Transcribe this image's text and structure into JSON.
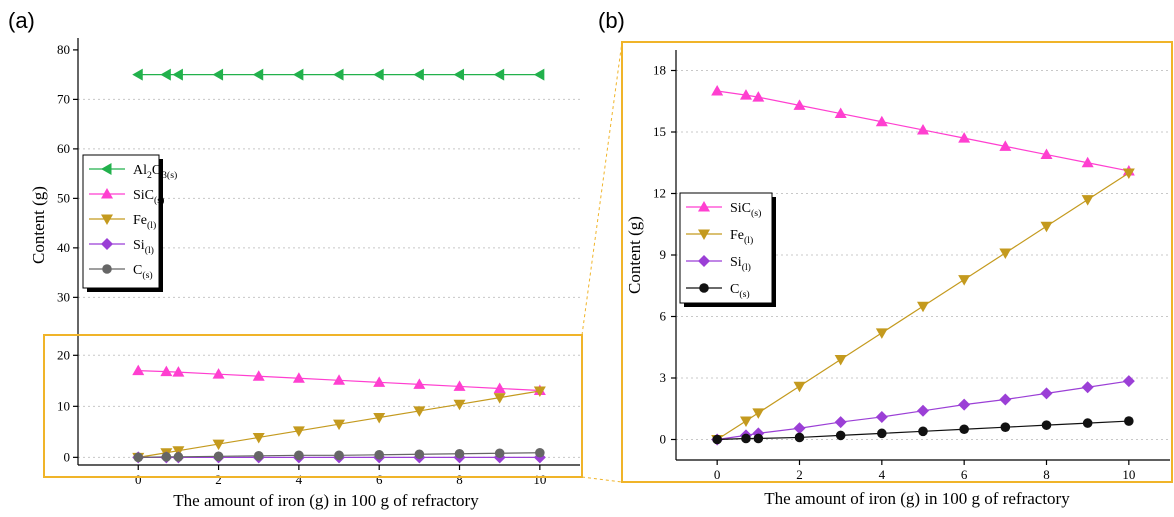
{
  "figure": {
    "panel_a_label": "(a)",
    "panel_b_label": "(b)",
    "highlight_color": "#f0b429"
  },
  "chart_data": [
    {
      "type": "line",
      "panel": "(a)",
      "xlabel": "The amount of iron (g) in 100 g of refractory",
      "ylabel": "Content (g)",
      "xlim": [
        -1.5,
        11
      ],
      "xticks": [
        0,
        2,
        4,
        6,
        8,
        10
      ],
      "y_upper": {
        "ylim": [
          23,
          82
        ],
        "yticks": [
          30,
          40,
          50,
          60,
          70,
          80
        ]
      },
      "y_lower": {
        "ylim": [
          -1.5,
          23
        ],
        "yticks": [
          0,
          10,
          20
        ]
      },
      "grid": true,
      "legend_position": "left",
      "x": [
        0,
        0.7,
        1,
        2,
        3,
        4,
        5,
        6,
        7,
        8,
        9,
        10
      ],
      "series": [
        {
          "key": "al2o3",
          "name": "Al2O3(s)",
          "marker": "left-triangle",
          "color": "#22b14c",
          "values": [
            75,
            75,
            75,
            75,
            75,
            75,
            75,
            75,
            75,
            75,
            75,
            75
          ]
        },
        {
          "key": "sic",
          "name": "SiC(s)",
          "marker": "up-triangle",
          "color": "#ff3fd0",
          "values": [
            17,
            16.8,
            16.7,
            16.3,
            15.9,
            15.5,
            15.1,
            14.7,
            14.3,
            13.9,
            13.5,
            13.1
          ]
        },
        {
          "key": "fe",
          "name": "Fe(l)",
          "marker": "down-triangle",
          "color": "#c49a1e",
          "values": [
            0,
            0.9,
            1.3,
            2.6,
            3.9,
            5.2,
            6.5,
            7.8,
            9.1,
            10.4,
            11.7,
            13.0
          ]
        },
        {
          "key": "si",
          "name": "Si(l)",
          "marker": "diamond",
          "color": "#9b3fd6",
          "values": [
            0,
            0,
            0,
            0,
            0,
            0,
            0,
            0,
            0,
            0,
            0,
            0
          ]
        },
        {
          "key": "c",
          "name": "C(s)",
          "marker": "circle",
          "color": "#666666",
          "values": [
            0,
            0.1,
            0.1,
            0.2,
            0.3,
            0.4,
            0.4,
            0.5,
            0.6,
            0.7,
            0.8,
            0.9
          ]
        }
      ],
      "legend": [
        {
          "series": "al2o3",
          "base": "Al",
          "sub1": "2",
          "mid": "O",
          "sub2": "3(s)"
        },
        {
          "series": "sic",
          "base": "SiC",
          "sub1": "(s)",
          "mid": "",
          "sub2": ""
        },
        {
          "series": "fe",
          "base": "Fe",
          "sub1": "(l)",
          "mid": "",
          "sub2": ""
        },
        {
          "series": "si",
          "base": "Si",
          "sub1": "(l)",
          "mid": "",
          "sub2": ""
        },
        {
          "series": "c",
          "base": "C",
          "sub1": "(s)",
          "mid": "",
          "sub2": ""
        }
      ]
    },
    {
      "type": "line",
      "panel": "(b)",
      "xlabel": "The amount of iron (g) in 100 g of refractory",
      "ylabel": "Content (g)",
      "xlim": [
        -1,
        11
      ],
      "ylim": [
        -1,
        19
      ],
      "xticks": [
        0,
        2,
        4,
        6,
        8,
        10
      ],
      "yticks": [
        0,
        3,
        6,
        9,
        12,
        15,
        18
      ],
      "grid": true,
      "legend_position": "left",
      "x": [
        0,
        0.7,
        1,
        2,
        3,
        4,
        5,
        6,
        7,
        8,
        9,
        10
      ],
      "series": [
        {
          "key": "sic",
          "name": "SiC(s)",
          "marker": "up-triangle",
          "color": "#ff3fd0",
          "values": [
            17,
            16.8,
            16.7,
            16.3,
            15.9,
            15.5,
            15.1,
            14.7,
            14.3,
            13.9,
            13.5,
            13.1
          ]
        },
        {
          "key": "fe",
          "name": "Fe(l)",
          "marker": "down-triangle",
          "color": "#c49a1e",
          "values": [
            0,
            0.9,
            1.3,
            2.6,
            3.9,
            5.2,
            6.5,
            7.8,
            9.1,
            10.4,
            11.7,
            13.0
          ]
        },
        {
          "key": "si",
          "name": "Si(l)",
          "marker": "diamond",
          "color": "#9b3fd6",
          "values": [
            0,
            0.2,
            0.3,
            0.55,
            0.85,
            1.1,
            1.4,
            1.7,
            1.95,
            2.25,
            2.55,
            2.85
          ]
        },
        {
          "key": "c",
          "name": "C(s)",
          "marker": "circle",
          "color": "#111111",
          "values": [
            0,
            0.05,
            0.05,
            0.1,
            0.2,
            0.3,
            0.4,
            0.5,
            0.6,
            0.7,
            0.8,
            0.9
          ]
        }
      ],
      "legend": [
        {
          "series": "sic",
          "base": "SiC",
          "sub1": "(s)",
          "mid": "",
          "sub2": ""
        },
        {
          "series": "fe",
          "base": "Fe",
          "sub1": "(l)",
          "mid": "",
          "sub2": ""
        },
        {
          "series": "si",
          "base": "Si",
          "sub1": "(l)",
          "mid": "",
          "sub2": ""
        },
        {
          "series": "c",
          "base": "C",
          "sub1": "(s)",
          "mid": "",
          "sub2": ""
        }
      ]
    }
  ]
}
